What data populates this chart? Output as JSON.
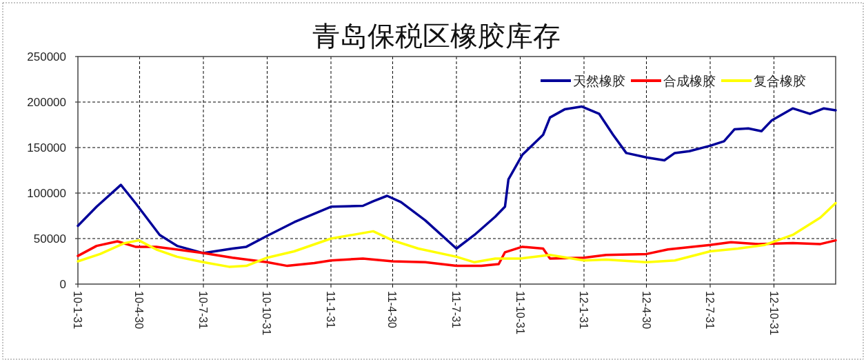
{
  "chart_data": {
    "type": "line",
    "title": "青岛保税区橡胶库存",
    "xlim": [
      "2010-01-31",
      "2013-01-28"
    ],
    "xticks": [
      {
        "value": "2010-01-31",
        "label": "10-1-31"
      },
      {
        "value": "2010-04-30",
        "label": "10-4-30"
      },
      {
        "value": "2010-07-31",
        "label": "10-7-31"
      },
      {
        "value": "2010-10-31",
        "label": "10-10-31"
      },
      {
        "value": "2011-01-31",
        "label": "11-1-31"
      },
      {
        "value": "2011-04-30",
        "label": "11-4-30"
      },
      {
        "value": "2011-07-31",
        "label": "11-7-31"
      },
      {
        "value": "2011-10-31",
        "label": "11-10-31"
      },
      {
        "value": "2012-01-31",
        "label": "12-1-31"
      },
      {
        "value": "2012-04-30",
        "label": "12-4-30"
      },
      {
        "value": "2012-07-31",
        "label": "12-7-31"
      },
      {
        "value": "2012-10-31",
        "label": "12-10-31"
      }
    ],
    "ylim": [
      0,
      250000
    ],
    "yticks": [
      0,
      50000,
      100000,
      150000,
      200000,
      250000
    ],
    "grid": true,
    "legend": "top right",
    "line_style": "solid",
    "marker": "none",
    "series": [
      {
        "name": "天然橡胶",
        "color": "#000099",
        "x": [
          "2010-01-31",
          "2010-02-27",
          "2010-04-03",
          "2010-04-24",
          "2010-05-29",
          "2010-06-23",
          "2010-07-31",
          "2010-09-11",
          "2010-10-01",
          "2010-10-31",
          "2010-12-09",
          "2011-01-31",
          "2011-03-18",
          "2011-04-02",
          "2011-04-22",
          "2011-05-12",
          "2011-06-16",
          "2011-07-31",
          "2011-08-26",
          "2011-09-25",
          "2011-10-09",
          "2011-10-14",
          "2011-11-03",
          "2011-12-03",
          "2011-12-13",
          "2012-01-03",
          "2012-01-28",
          "2012-02-22",
          "2012-03-13",
          "2012-04-01",
          "2012-05-01",
          "2012-05-26",
          "2012-06-10",
          "2012-07-01",
          "2012-07-31",
          "2012-08-20",
          "2012-09-04",
          "2012-09-24",
          "2012-10-13",
          "2012-10-28",
          "2012-11-27",
          "2012-12-22",
          "2013-01-11",
          "2013-01-28"
        ],
        "values": [
          64000,
          85000,
          109000,
          89000,
          54000,
          42000,
          34000,
          39000,
          41000,
          53000,
          68000,
          85000,
          86000,
          91000,
          97000,
          90000,
          70000,
          39000,
          54000,
          74000,
          85000,
          115000,
          142000,
          164000,
          183000,
          192000,
          195000,
          187000,
          164000,
          144000,
          139000,
          136000,
          144000,
          146000,
          152000,
          157000,
          170000,
          171000,
          168000,
          180000,
          193000,
          187000,
          193000,
          191000
        ]
      },
      {
        "name": "合成橡胶",
        "color": "#ff0000",
        "x": [
          "2010-01-31",
          "2010-02-27",
          "2010-03-29",
          "2010-04-24",
          "2010-05-24",
          "2010-07-31",
          "2010-09-11",
          "2010-10-31",
          "2010-11-29",
          "2011-01-07",
          "2011-01-31",
          "2011-03-18",
          "2011-04-30",
          "2011-06-16",
          "2011-07-31",
          "2011-09-05",
          "2011-09-30",
          "2011-10-09",
          "2011-11-03",
          "2011-12-03",
          "2011-12-13",
          "2012-01-31",
          "2012-03-03",
          "2012-04-30",
          "2012-05-31",
          "2012-07-31",
          "2012-08-30",
          "2012-10-08",
          "2012-11-27",
          "2013-01-06",
          "2013-01-28"
        ],
        "values": [
          31000,
          42000,
          47000,
          41000,
          41000,
          34000,
          29000,
          24000,
          20000,
          23000,
          26000,
          28000,
          25000,
          24000,
          20000,
          20000,
          22000,
          35000,
          41000,
          39000,
          28000,
          29000,
          32000,
          33000,
          38000,
          43000,
          46000,
          44000,
          45000,
          44000,
          48000
        ]
      },
      {
        "name": "复合橡胶",
        "color": "#ffff00",
        "x": [
          "2010-01-31",
          "2010-03-04",
          "2010-04-08",
          "2010-04-29",
          "2010-05-24",
          "2010-06-23",
          "2010-07-31",
          "2010-09-06",
          "2010-10-01",
          "2010-10-31",
          "2010-12-09",
          "2011-01-31",
          "2011-04-02",
          "2011-04-30",
          "2011-06-06",
          "2011-07-31",
          "2011-08-26",
          "2011-09-25",
          "2011-10-31",
          "2011-12-13",
          "2012-01-31",
          "2012-03-03",
          "2012-04-30",
          "2012-06-10",
          "2012-07-31",
          "2012-09-09",
          "2012-10-18",
          "2012-11-27",
          "2013-01-06",
          "2013-01-28"
        ],
        "values": [
          25000,
          33000,
          45000,
          48000,
          38000,
          30000,
          24000,
          19000,
          20000,
          29000,
          36000,
          50000,
          58000,
          48000,
          39000,
          30000,
          24000,
          28000,
          28000,
          32000,
          26000,
          27000,
          24000,
          26000,
          36000,
          39000,
          43000,
          54000,
          73000,
          89000
        ]
      }
    ]
  }
}
